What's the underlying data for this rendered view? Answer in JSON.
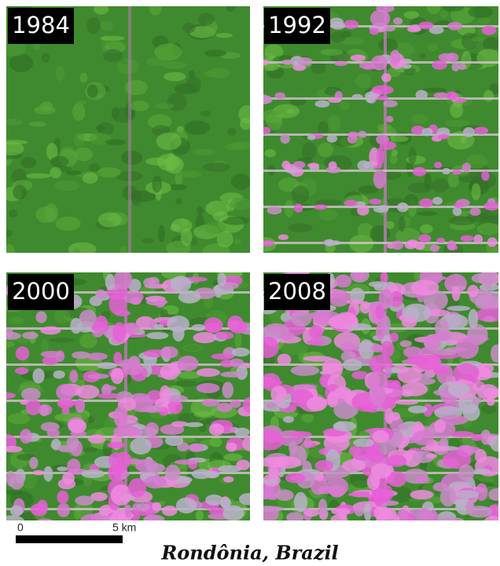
{
  "panels": [
    {
      "label": "1984"
    },
    {
      "label": "1992"
    },
    {
      "label": "2000"
    },
    {
      "label": "2008"
    }
  ],
  "scale_bar": {
    "start": "0",
    "end": "5 km"
  },
  "caption": "Rondônia, Brazil"
}
